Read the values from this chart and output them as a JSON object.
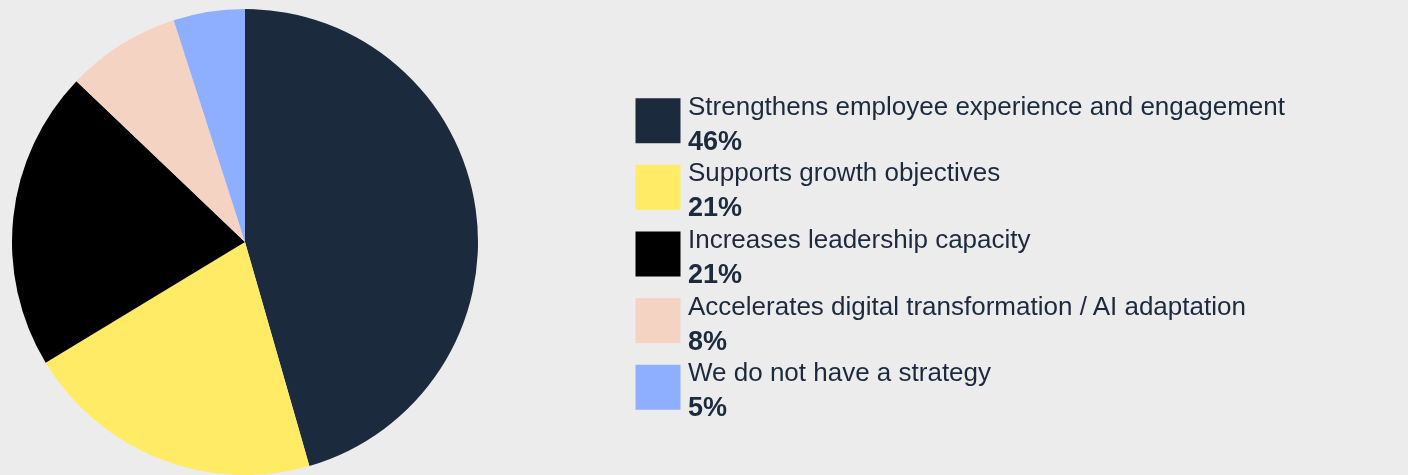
{
  "chart_data": {
    "type": "pie",
    "categories": [
      "Strengthens employee experience and engagement",
      "Supports growth objectives",
      "Increases leadership capacity",
      "Accelerates digital transformation / AI adaptation",
      "We do not have a strategy"
    ],
    "values": [
      46,
      21,
      21,
      8,
      5
    ],
    "value_labels": [
      "46%",
      "21%",
      "21%",
      "8%",
      "5%"
    ],
    "colors": [
      "#1c2a3e",
      "#ffeb66",
      "#000000",
      "#f5d3c3",
      "#8eaeff"
    ],
    "legend": "right"
  }
}
